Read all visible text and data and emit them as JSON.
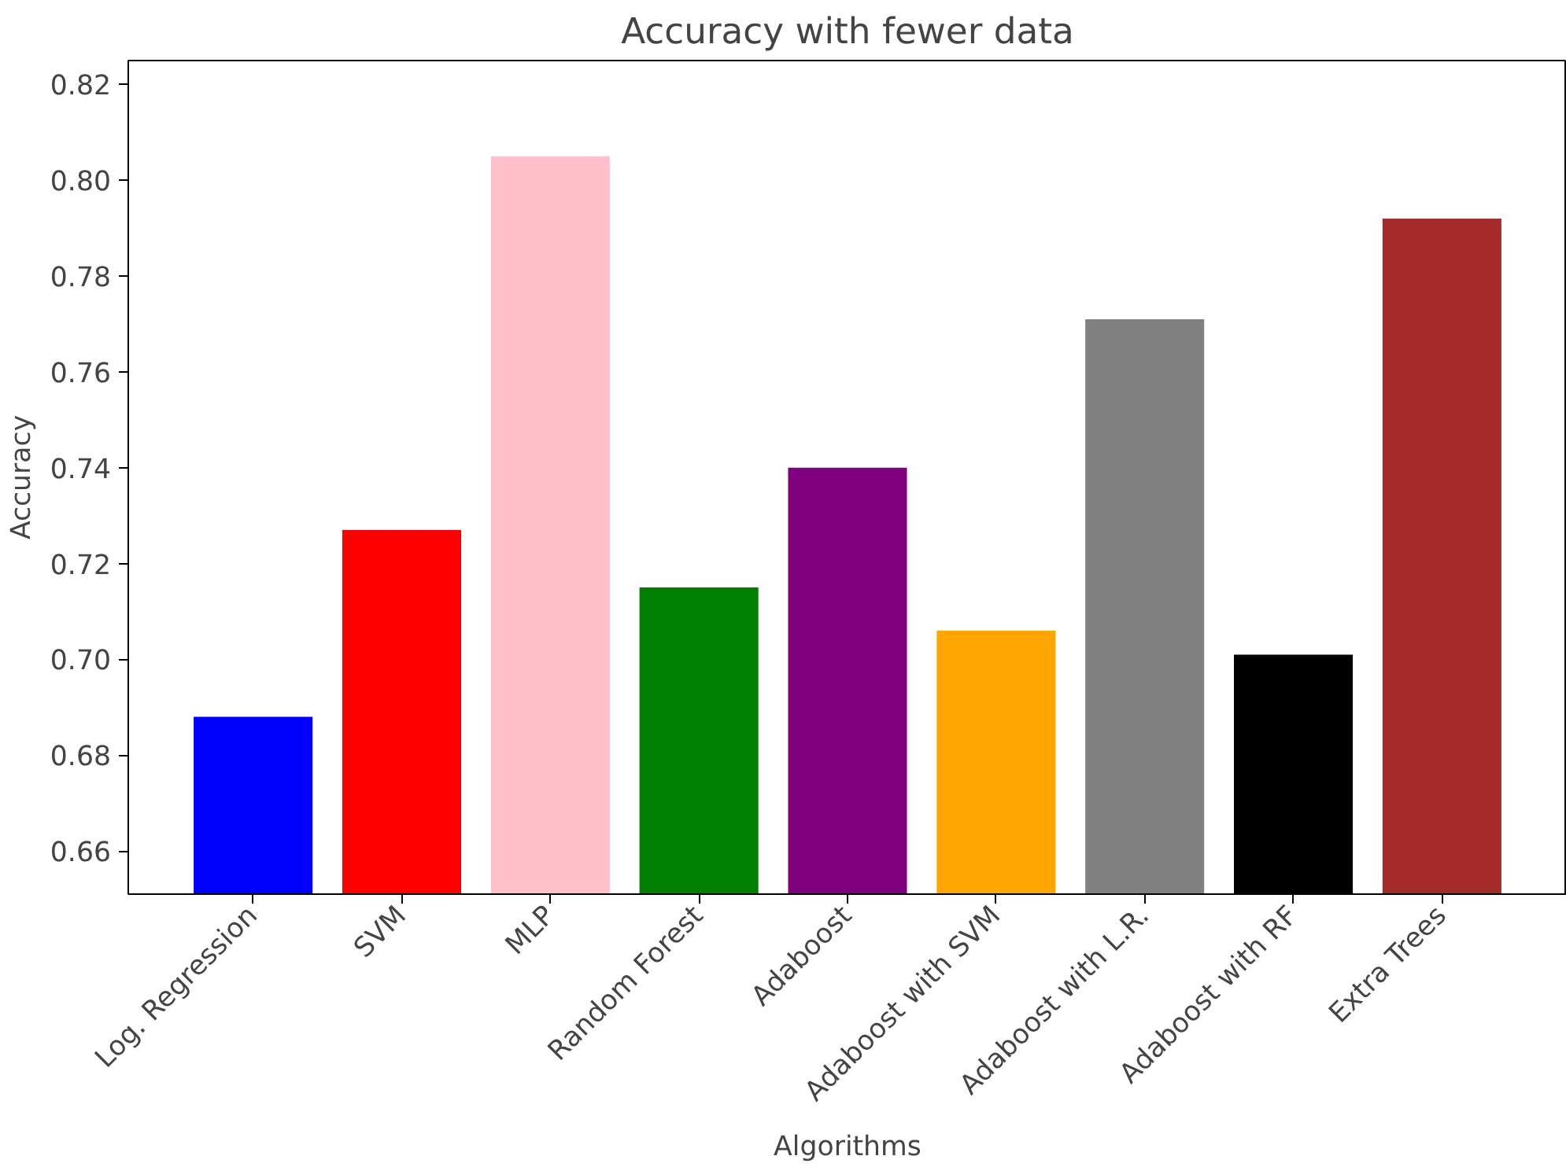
{
  "chart_data": {
    "type": "bar",
    "title": "Accuracy with fewer data",
    "xlabel": "Algorithms",
    "ylabel": "Accuracy",
    "categories": [
      "Log. Regression",
      "SVM",
      "MLP",
      "Random Forest",
      "Adaboost",
      "Adaboost with SVM",
      "Adaboost with L.R.",
      "Adaboost with RF",
      "Extra Trees"
    ],
    "values": [
      0.688,
      0.727,
      0.805,
      0.715,
      0.74,
      0.706,
      0.771,
      0.701,
      0.792
    ],
    "colors": [
      "#0000ff",
      "#ff0000",
      "#ffc0cb",
      "#008000",
      "#800080",
      "#ffa500",
      "#808080",
      "#000000",
      "#a52a2a"
    ],
    "ylim": [
      0.651,
      0.825
    ],
    "yticks": [
      {
        "value": 0.66,
        "label": "0.66"
      },
      {
        "value": 0.68,
        "label": "0.68"
      },
      {
        "value": 0.7,
        "label": "0.70"
      },
      {
        "value": 0.72,
        "label": "0.72"
      },
      {
        "value": 0.74,
        "label": "0.74"
      },
      {
        "value": 0.76,
        "label": "0.76"
      },
      {
        "value": 0.78,
        "label": "0.78"
      },
      {
        "value": 0.8,
        "label": "0.80"
      },
      {
        "value": 0.82,
        "label": "0.82"
      }
    ],
    "grid": false
  }
}
